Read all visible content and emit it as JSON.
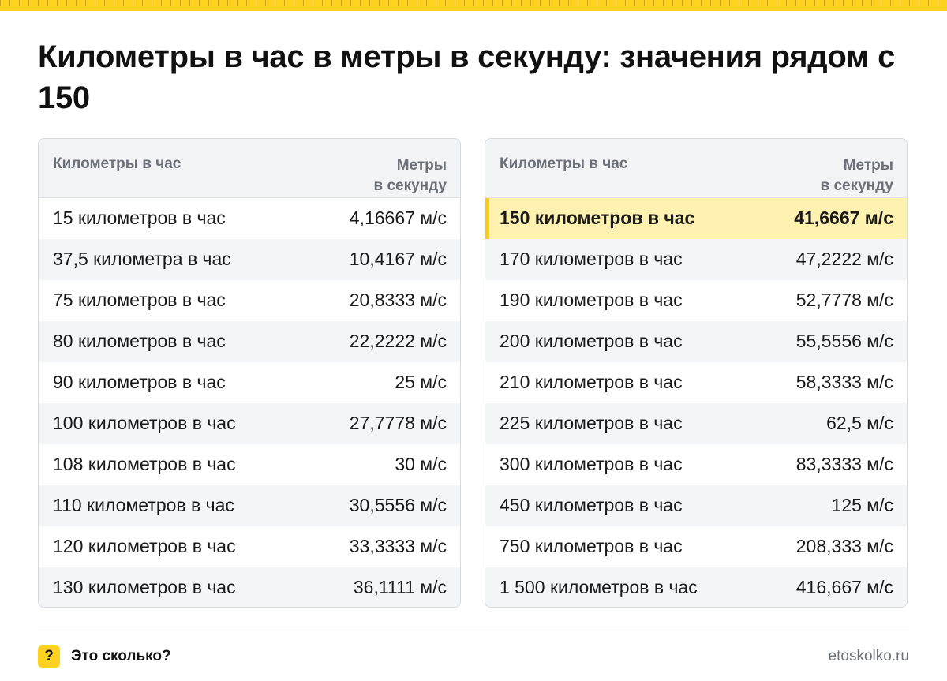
{
  "title": "Километры в час в метры в секунду: значения рядом с 150",
  "colors": {
    "accent": "#ffd21f",
    "highlight_row": "#fff2b0",
    "header_bg": "#f2f3f5",
    "text_muted": "#6b7079"
  },
  "tables": [
    {
      "header": {
        "left": "Километры в час",
        "right_line1": "Метры",
        "right_line2": "в секунду"
      },
      "rows": [
        {
          "kmh": "15 километров в час",
          "ms": "4,16667 м/с"
        },
        {
          "kmh": "37,5 километра в час",
          "ms": "10,4167 м/с"
        },
        {
          "kmh": "75 километров в час",
          "ms": "20,8333 м/с"
        },
        {
          "kmh": "80 километров в час",
          "ms": "22,2222 м/с"
        },
        {
          "kmh": "90 километров в час",
          "ms": "25 м/с"
        },
        {
          "kmh": "100 километров в час",
          "ms": "27,7778 м/с"
        },
        {
          "kmh": "108 километров в час",
          "ms": "30 м/с"
        },
        {
          "kmh": "110 километров в час",
          "ms": "30,5556 м/с"
        },
        {
          "kmh": "120 километров в час",
          "ms": "33,3333 м/с"
        },
        {
          "kmh": "130 километров в час",
          "ms": "36,1111 м/с"
        }
      ]
    },
    {
      "header": {
        "left": "Километры в час",
        "right_line1": "Метры",
        "right_line2": "в секунду"
      },
      "rows": [
        {
          "kmh": "150 километров в час",
          "ms": "41,6667 м/с",
          "highlighted": true
        },
        {
          "kmh": "170 километров в час",
          "ms": "47,2222 м/с"
        },
        {
          "kmh": "190 километров в час",
          "ms": "52,7778 м/с"
        },
        {
          "kmh": "200 километров в час",
          "ms": "55,5556 м/с"
        },
        {
          "kmh": "210 километров в час",
          "ms": "58,3333 м/с"
        },
        {
          "kmh": "225 километров в час",
          "ms": "62,5 м/с"
        },
        {
          "kmh": "300 километров в час",
          "ms": "83,3333 м/с"
        },
        {
          "kmh": "450 километров в час",
          "ms": "125 м/с"
        },
        {
          "kmh": "750 километров в час",
          "ms": "208,333 м/с"
        },
        {
          "kmh": "1 500 километров в час",
          "ms": "416,667 м/с"
        }
      ]
    }
  ],
  "footer": {
    "badge": "?",
    "brand": "Это сколько?",
    "site": "etoskolko.ru"
  }
}
